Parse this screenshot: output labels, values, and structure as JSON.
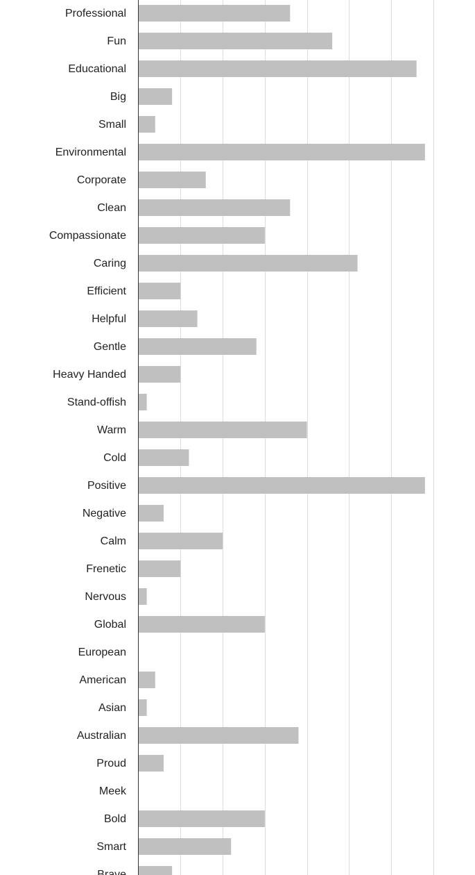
{
  "chart_data": {
    "type": "bar",
    "orientation": "horizontal",
    "categories": [
      "Professional",
      "Fun",
      "Educational",
      "Big",
      "Small",
      "Environmental",
      "Corporate",
      "Clean",
      "Compassionate",
      "Caring",
      "Efficient",
      "Helpful",
      "Gentle",
      "Heavy Handed",
      "Stand-offish",
      "Warm",
      "Cold",
      "Positive",
      "Negative",
      "Calm",
      "Frenetic",
      "Nervous",
      "Global",
      "European",
      "American",
      "Asian",
      "Australian",
      "Proud",
      "Meek",
      "Bold",
      "Smart",
      "Brave"
    ],
    "values": [
      18,
      23,
      33,
      4,
      2,
      34,
      8,
      18,
      15,
      26,
      5,
      7,
      14,
      5,
      1,
      20,
      6,
      34,
      3,
      10,
      5,
      1,
      15,
      0,
      2,
      1,
      19,
      3,
      0,
      15,
      11,
      4
    ],
    "color": "#c0c0c0",
    "xlim": [
      0,
      35
    ],
    "xticks": [
      5,
      10,
      15,
      20,
      25,
      30,
      35
    ],
    "grid": true
  }
}
